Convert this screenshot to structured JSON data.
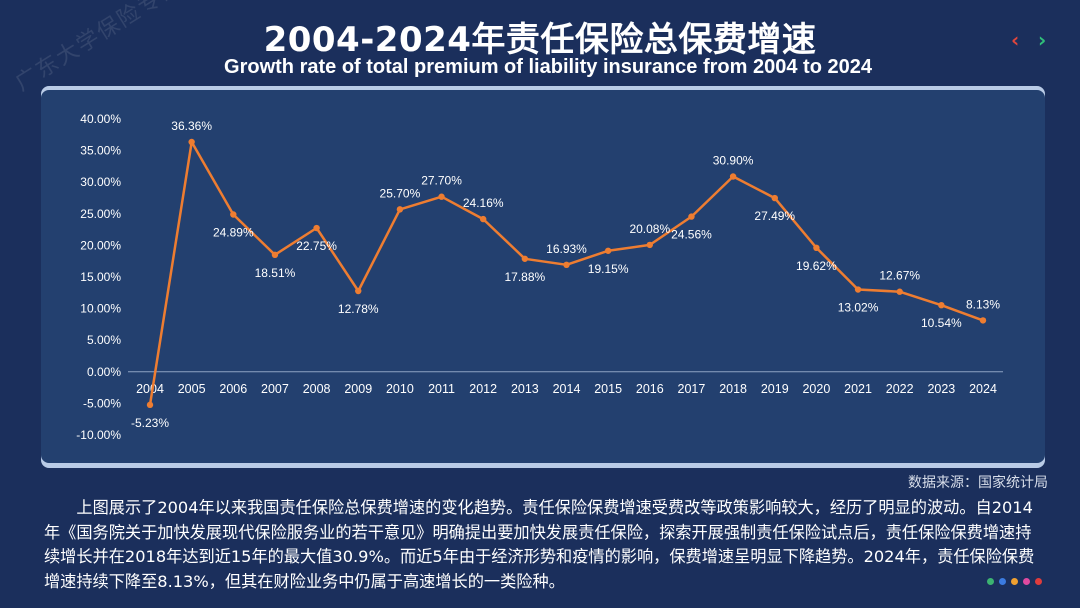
{
  "page": {
    "title": "2004-2024年责任保险总保费增速",
    "subtitle": "Growth rate of  total premium of liability insurance from 2004 to 2024",
    "watermark": "广东大学保险专硕",
    "nav_prev": "‹",
    "nav_next": "›",
    "source": "数据来源：国家统计局",
    "description": "上图展示了2004年以来我国责任保险总保费增速的变化趋势。责任保险保费增速受费改等政策影响较大，经历了明显的波动。自2014年《国务院关于加快发展现代保险服务业的若干意见》明确提出要加快发展责任保险，探索开展强制责任保险试点后，责任保险保费增速持续增长并在2018年达到近15年的最大值30.9%。而近5年由于经济形势和疫情的影响，保费增速呈明显下降趋势。2024年，责任保险保费增速持续下降至8.13%，但其在财险业务中仍属于高速增长的一类险种。",
    "dot_colors": [
      "#3cb371",
      "#3b7be0",
      "#f0a030",
      "#e04aa0",
      "#e03c3c"
    ]
  },
  "colors": {
    "background": "#1b2f5c",
    "panel": "#23406f",
    "line": "#ee7d31",
    "text": "#ffffff"
  },
  "chart_data": {
    "type": "line",
    "title": "2004-2024年责任保险总保费增速",
    "categories": [
      "2004",
      "2005",
      "2006",
      "2007",
      "2008",
      "2009",
      "2010",
      "2011",
      "2012",
      "2013",
      "2014",
      "2015",
      "2016",
      "2017",
      "2018",
      "2019",
      "2020",
      "2021",
      "2022",
      "2023",
      "2024"
    ],
    "values": [
      -5.23,
      36.36,
      24.89,
      18.51,
      22.75,
      12.78,
      25.7,
      27.7,
      24.16,
      17.88,
      16.93,
      19.15,
      20.08,
      24.56,
      30.9,
      27.49,
      19.62,
      13.02,
      12.67,
      10.54,
      8.13
    ],
    "data_labels": [
      "-5.23%",
      "36.36%",
      "24.89%",
      "18.51%",
      "22.75%",
      "12.78%",
      "25.70%",
      "27.70%",
      "24.16%",
      "17.88%",
      "16.93%",
      "19.15%",
      "20.08%",
      "24.56%",
      "30.90%",
      "27.49%",
      "19.62%",
      "13.02%",
      "12.67%",
      "10.54%",
      "8.13%"
    ],
    "y_ticks": [
      40,
      35,
      30,
      25,
      20,
      15,
      10,
      5,
      0,
      -5,
      -10
    ],
    "y_tick_labels": [
      "40.00%",
      "35.00%",
      "30.00%",
      "25.00%",
      "20.00%",
      "15.00%",
      "10.00%",
      "5.00%",
      "0.00%",
      "-5.00%",
      "-10.00%"
    ],
    "ylim": [
      -10,
      40
    ],
    "xlabel": "",
    "ylabel": "",
    "grid": false,
    "legend": "none"
  }
}
